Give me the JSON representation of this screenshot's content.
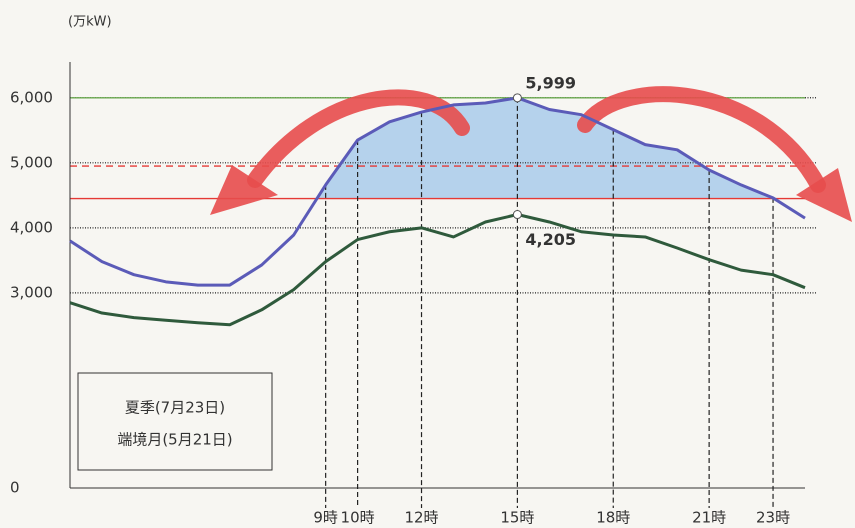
{
  "chart_data": {
    "type": "line",
    "y_unit": "(万kW)",
    "x": [
      1,
      2,
      3,
      4,
      5,
      6,
      7,
      8,
      9,
      10,
      11,
      12,
      13,
      14,
      15,
      16,
      17,
      18,
      19,
      20,
      21,
      22,
      23,
      24
    ],
    "xlim": [
      1,
      24
    ],
    "xticks": [
      {
        "value": 9,
        "label": "9時"
      },
      {
        "value": 10,
        "label": "10時"
      },
      {
        "value": 12,
        "label": "12時"
      },
      {
        "value": 15,
        "label": "15時"
      },
      {
        "value": 18,
        "label": "18時"
      },
      {
        "value": 21,
        "label": "21時"
      },
      {
        "value": 23,
        "label": "23時"
      }
    ],
    "ylim": [
      0,
      6550
    ],
    "yticks": [
      {
        "value": 0,
        "label": "0"
      },
      {
        "value": 3000,
        "label": "3,000"
      },
      {
        "value": 4000,
        "label": "4,000"
      },
      {
        "value": 5000,
        "label": "5,000"
      },
      {
        "value": 6000,
        "label": "6,000"
      }
    ],
    "series": [
      {
        "name": "夏季(7月23日)",
        "color": "#5b5bb8",
        "values": [
          3800,
          3480,
          3280,
          3170,
          3120,
          3120,
          3430,
          3890,
          4660,
          5350,
          5630,
          5780,
          5890,
          5920,
          5999,
          5820,
          5740,
          5510,
          5280,
          5200,
          4890,
          4660,
          4460,
          4150
        ]
      },
      {
        "name": "端境月(5月21日)",
        "color": "#2f5a3c",
        "values": [
          2850,
          2690,
          2620,
          2580,
          2540,
          2510,
          2740,
          3050,
          3480,
          3820,
          3940,
          4000,
          3860,
          4090,
          4205,
          4090,
          3940,
          3890,
          3860,
          3690,
          3510,
          3350,
          3280,
          3080
        ]
      }
    ],
    "annotations": [
      {
        "label": "5,999",
        "x": 15,
        "y": 5999,
        "color": "#5b5bb8"
      },
      {
        "label": "4,205",
        "x": 15,
        "y": 4205,
        "color": "#2f5a3c"
      }
    ],
    "hlines": [
      {
        "value": 6000,
        "color": "#6aa84f",
        "dash": false
      },
      {
        "value": 4950,
        "color": "#e53935",
        "dash": true
      },
      {
        "value": 4450,
        "color": "#e53935",
        "dash": false
      }
    ],
    "area_fill": "#a9cbeb"
  }
}
